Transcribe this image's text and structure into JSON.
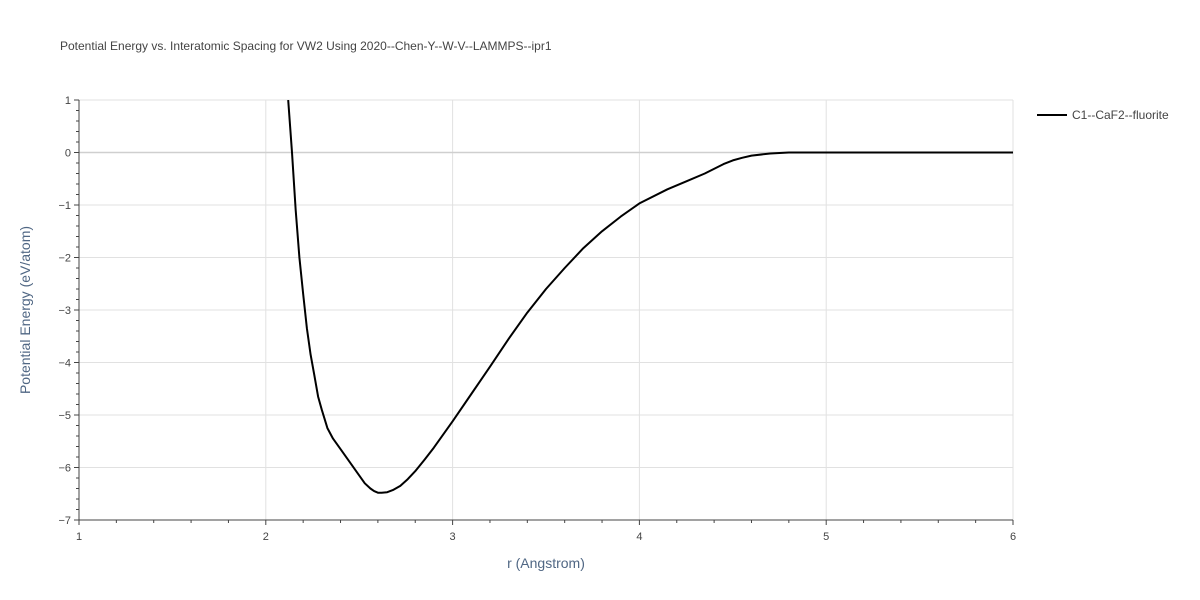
{
  "chart_data": {
    "type": "line",
    "title": "Potential Energy vs. Interatomic Spacing for VW2 Using 2020--Chen-Y--W-V--LAMMPS--ipr1",
    "xlabel": "r (Angstrom)",
    "ylabel": "Potential Energy (eV/atom)",
    "xlim": [
      1,
      6
    ],
    "ylim": [
      -7,
      1
    ],
    "xticks": [
      1,
      2,
      3,
      4,
      5,
      6
    ],
    "yticks": [
      1,
      0,
      -1,
      -2,
      -3,
      -4,
      -5,
      -6,
      -7
    ],
    "xtick_labels": [
      "1",
      "2",
      "3",
      "4",
      "5",
      "6"
    ],
    "ytick_labels": [
      "1",
      "0",
      "−1",
      "−2",
      "−3",
      "−4",
      "−5",
      "−6",
      "−7"
    ],
    "grid": true,
    "legend_position": "top-right",
    "series": [
      {
        "name": "C1--CaF2--fluorite",
        "color": "#000000",
        "x": [
          2.12,
          2.14,
          2.16,
          2.18,
          2.2,
          2.22,
          2.24,
          2.26,
          2.28,
          2.3,
          2.33,
          2.36,
          2.4,
          2.45,
          2.5,
          2.53,
          2.56,
          2.58,
          2.6,
          2.62,
          2.65,
          2.68,
          2.72,
          2.76,
          2.8,
          2.85,
          2.9,
          3.0,
          3.1,
          3.2,
          3.3,
          3.4,
          3.5,
          3.6,
          3.7,
          3.8,
          3.9,
          4.0,
          4.15,
          4.25,
          4.35,
          4.45,
          4.5,
          4.55,
          4.6,
          4.7,
          4.8,
          4.9,
          5.0,
          5.5,
          6.0
        ],
        "y": [
          1.0,
          0.0,
          -1.1,
          -2.0,
          -2.7,
          -3.35,
          -3.85,
          -4.25,
          -4.65,
          -4.9,
          -5.25,
          -5.45,
          -5.65,
          -5.9,
          -6.15,
          -6.3,
          -6.4,
          -6.45,
          -6.48,
          -6.48,
          -6.47,
          -6.43,
          -6.35,
          -6.22,
          -6.07,
          -5.85,
          -5.62,
          -5.12,
          -4.6,
          -4.08,
          -3.55,
          -3.05,
          -2.6,
          -2.2,
          -1.82,
          -1.5,
          -1.22,
          -0.97,
          -0.7,
          -0.55,
          -0.4,
          -0.22,
          -0.15,
          -0.1,
          -0.06,
          -0.02,
          0.0,
          0.0,
          0.0,
          0.0,
          0.0
        ]
      }
    ]
  }
}
